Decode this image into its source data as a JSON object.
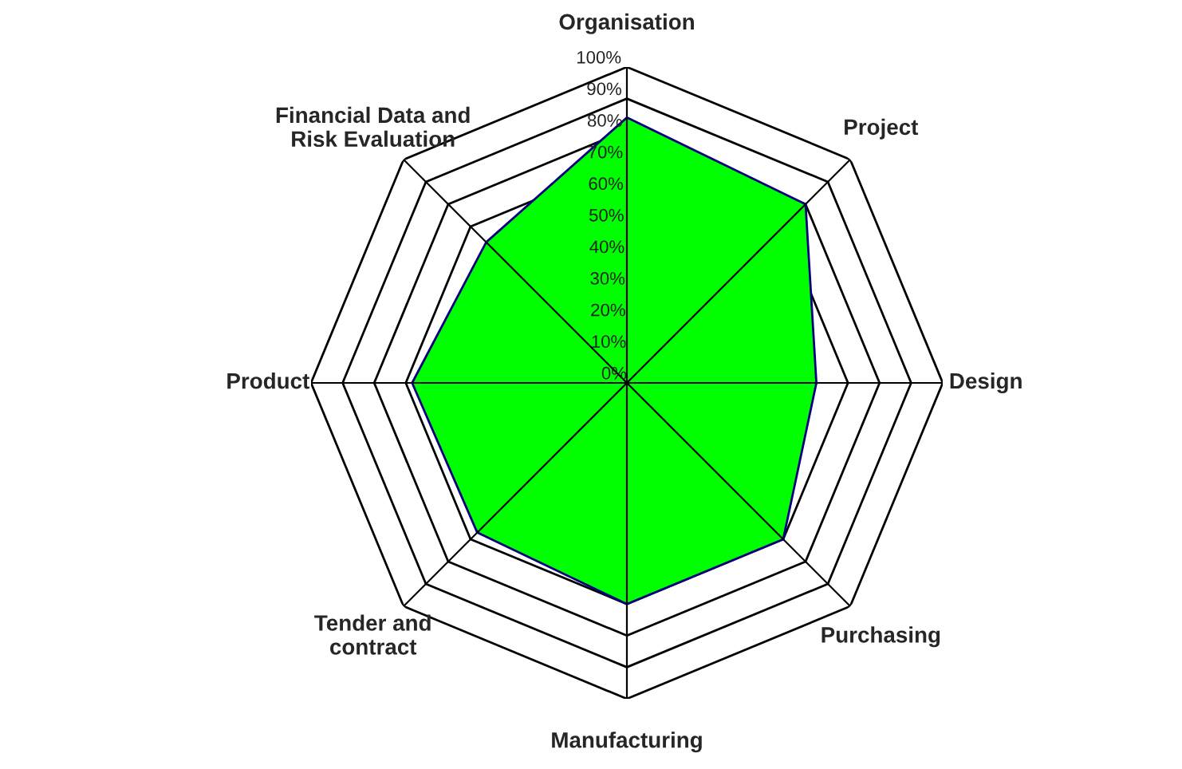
{
  "chart_data": {
    "type": "radar",
    "categories": [
      "Organisation",
      "Project",
      "Design",
      "Purchasing",
      "Manufacturing",
      "Tender and\ncontract",
      "Product",
      "Financial Data and\nRisk Evaluation"
    ],
    "series": [
      {
        "color": "#00ff00",
        "values": [
          84,
          80,
          60,
          70,
          70,
          67,
          68,
          63
        ]
      }
    ],
    "ylim": [
      0,
      100
    ],
    "yticks": [
      {
        "value": 0,
        "label": "0%"
      },
      {
        "value": 10,
        "label": "10%"
      },
      {
        "value": 20,
        "label": "20%"
      },
      {
        "value": 30,
        "label": "30%"
      },
      {
        "value": 40,
        "label": "40%"
      },
      {
        "value": 50,
        "label": "50%"
      },
      {
        "value": 60,
        "label": "60%"
      },
      {
        "value": 70,
        "label": "70%"
      },
      {
        "value": 80,
        "label": "80%"
      },
      {
        "value": 90,
        "label": "90%"
      },
      {
        "value": 100,
        "label": "100%"
      }
    ],
    "grid": true
  }
}
